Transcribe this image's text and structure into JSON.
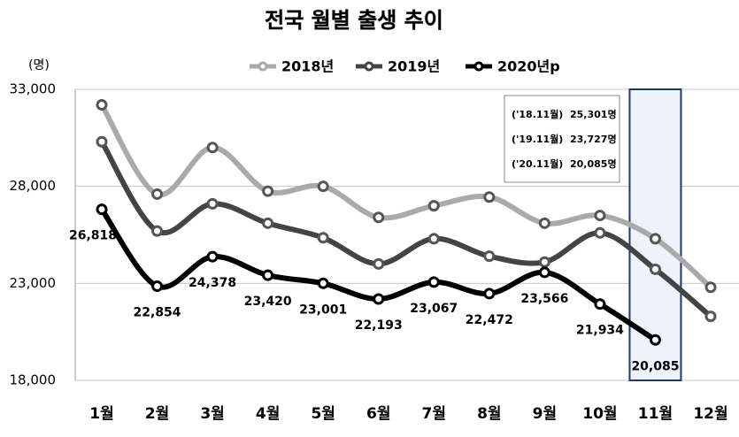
{
  "chart_data": {
    "type": "line",
    "title": "전국 월별 출생 추이",
    "y_unit": "(명)",
    "categories": [
      "1월",
      "2월",
      "3월",
      "4월",
      "5월",
      "6월",
      "7월",
      "8월",
      "9월",
      "10월",
      "11월",
      "12월"
    ],
    "series": [
      {
        "name": "2018년",
        "color": "#aaaaaa",
        "values": [
          32200,
          27600,
          30000,
          27750,
          28000,
          26400,
          27000,
          27450,
          26100,
          26500,
          25301,
          22800
        ]
      },
      {
        "name": "2019년",
        "color": "#444444",
        "values": [
          30300,
          25700,
          27100,
          26100,
          25350,
          24000,
          25300,
          24400,
          24100,
          25600,
          23727,
          21300
        ]
      },
      {
        "name": "2020년p",
        "color": "#000000",
        "values": [
          26818,
          22854,
          24378,
          23420,
          23001,
          22193,
          23067,
          22472,
          23566,
          21934,
          20085,
          null
        ],
        "value_labels": [
          "26,818",
          "22,854",
          "24,378",
          "23,420",
          "23,001",
          "22,193",
          "23,067",
          "22,472",
          "23,566",
          "21,934",
          "20,085",
          null
        ]
      }
    ],
    "ylim": [
      18000,
      33000
    ],
    "yticks": [
      {
        "value": 18000,
        "label": "18,000"
      },
      {
        "value": 23000,
        "label": "23,000"
      },
      {
        "value": 28000,
        "label": "28,000"
      },
      {
        "value": 33000,
        "label": "33,000"
      }
    ],
    "grid": true,
    "highlight_category": 10,
    "annotations": [
      {
        "label": "('18.11월)",
        "text": "25,301명"
      },
      {
        "label": "('19.11월)",
        "text": "23,727명"
      },
      {
        "label": "('20.11월)",
        "text": "20,085명"
      }
    ]
  }
}
